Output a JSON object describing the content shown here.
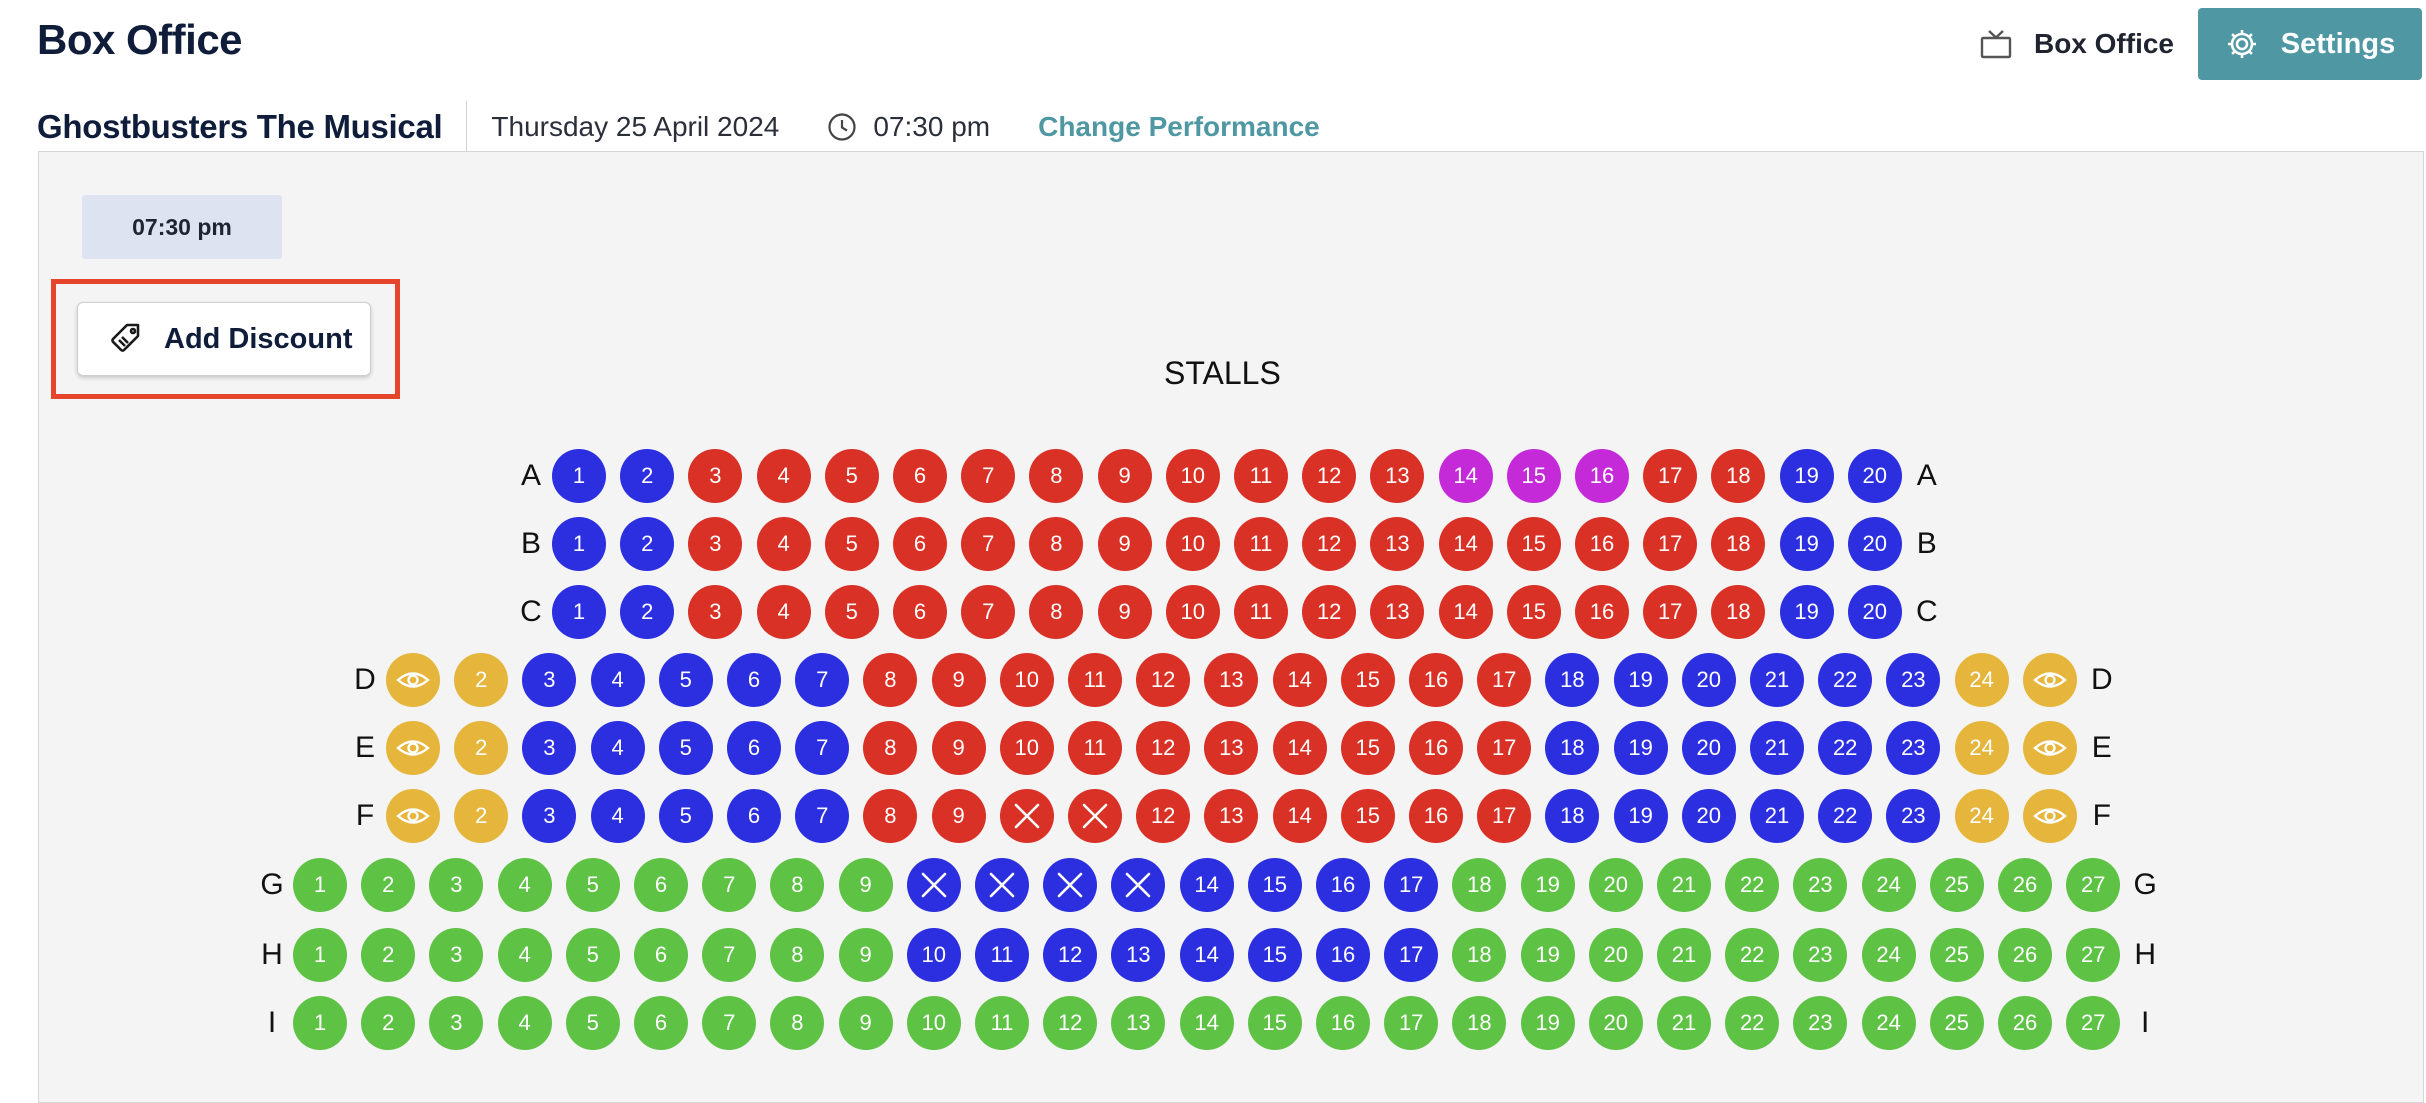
{
  "header": {
    "title": "Box Office",
    "box_office_label": "Box Office",
    "settings_label": "Settings"
  },
  "performance": {
    "title": "Ghostbusters The Musical",
    "date": "Thursday 25 April 2024",
    "time": "07:30 pm",
    "change_label": "Change Performance"
  },
  "time_chip": "07:30 pm",
  "add_discount_label": "Add Discount",
  "section": "STALLS",
  "colors": {
    "blue": "#2b2fe0",
    "red": "#d93125",
    "magenta": "#c52ad8",
    "yellow": "#e5b53c",
    "green": "#5ec245",
    "accent": "#4f98a3"
  },
  "rows": [
    {
      "label": "A",
      "seats": [
        {
          "n": "1",
          "s": "blue"
        },
        {
          "n": "2",
          "s": "blue"
        },
        {
          "n": "3",
          "s": "red"
        },
        {
          "n": "4",
          "s": "red"
        },
        {
          "n": "5",
          "s": "red"
        },
        {
          "n": "6",
          "s": "red"
        },
        {
          "n": "7",
          "s": "red"
        },
        {
          "n": "8",
          "s": "red"
        },
        {
          "n": "9",
          "s": "red"
        },
        {
          "n": "10",
          "s": "red"
        },
        {
          "n": "11",
          "s": "red"
        },
        {
          "n": "12",
          "s": "red"
        },
        {
          "n": "13",
          "s": "red"
        },
        {
          "n": "14",
          "s": "magenta"
        },
        {
          "n": "15",
          "s": "magenta"
        },
        {
          "n": "16",
          "s": "magenta"
        },
        {
          "n": "17",
          "s": "red"
        },
        {
          "n": "18",
          "s": "red"
        },
        {
          "n": "19",
          "s": "blue"
        },
        {
          "n": "20",
          "s": "blue"
        }
      ]
    },
    {
      "label": "B",
      "seats": [
        {
          "n": "1",
          "s": "blue"
        },
        {
          "n": "2",
          "s": "blue"
        },
        {
          "n": "3",
          "s": "red"
        },
        {
          "n": "4",
          "s": "red"
        },
        {
          "n": "5",
          "s": "red"
        },
        {
          "n": "6",
          "s": "red"
        },
        {
          "n": "7",
          "s": "red"
        },
        {
          "n": "8",
          "s": "red"
        },
        {
          "n": "9",
          "s": "red"
        },
        {
          "n": "10",
          "s": "red"
        },
        {
          "n": "11",
          "s": "red"
        },
        {
          "n": "12",
          "s": "red"
        },
        {
          "n": "13",
          "s": "red"
        },
        {
          "n": "14",
          "s": "red"
        },
        {
          "n": "15",
          "s": "red"
        },
        {
          "n": "16",
          "s": "red"
        },
        {
          "n": "17",
          "s": "red"
        },
        {
          "n": "18",
          "s": "red"
        },
        {
          "n": "19",
          "s": "blue"
        },
        {
          "n": "20",
          "s": "blue"
        }
      ]
    },
    {
      "label": "C",
      "seats": [
        {
          "n": "1",
          "s": "blue"
        },
        {
          "n": "2",
          "s": "blue"
        },
        {
          "n": "3",
          "s": "red"
        },
        {
          "n": "4",
          "s": "red"
        },
        {
          "n": "5",
          "s": "red"
        },
        {
          "n": "6",
          "s": "red"
        },
        {
          "n": "7",
          "s": "red"
        },
        {
          "n": "8",
          "s": "red"
        },
        {
          "n": "9",
          "s": "red"
        },
        {
          "n": "10",
          "s": "red"
        },
        {
          "n": "11",
          "s": "red"
        },
        {
          "n": "12",
          "s": "red"
        },
        {
          "n": "13",
          "s": "red"
        },
        {
          "n": "14",
          "s": "red"
        },
        {
          "n": "15",
          "s": "red"
        },
        {
          "n": "16",
          "s": "red"
        },
        {
          "n": "17",
          "s": "red"
        },
        {
          "n": "18",
          "s": "red"
        },
        {
          "n": "19",
          "s": "blue"
        },
        {
          "n": "20",
          "s": "blue"
        }
      ]
    },
    {
      "label": "D",
      "seats": [
        {
          "n": "",
          "s": "yellow",
          "icon": "eye"
        },
        {
          "n": "2",
          "s": "yellow"
        },
        {
          "n": "3",
          "s": "blue"
        },
        {
          "n": "4",
          "s": "blue"
        },
        {
          "n": "5",
          "s": "blue"
        },
        {
          "n": "6",
          "s": "blue"
        },
        {
          "n": "7",
          "s": "blue"
        },
        {
          "n": "8",
          "s": "red"
        },
        {
          "n": "9",
          "s": "red"
        },
        {
          "n": "10",
          "s": "red"
        },
        {
          "n": "11",
          "s": "red"
        },
        {
          "n": "12",
          "s": "red"
        },
        {
          "n": "13",
          "s": "red"
        },
        {
          "n": "14",
          "s": "red"
        },
        {
          "n": "15",
          "s": "red"
        },
        {
          "n": "16",
          "s": "red"
        },
        {
          "n": "17",
          "s": "red"
        },
        {
          "n": "18",
          "s": "blue"
        },
        {
          "n": "19",
          "s": "blue"
        },
        {
          "n": "20",
          "s": "blue"
        },
        {
          "n": "21",
          "s": "blue"
        },
        {
          "n": "22",
          "s": "blue"
        },
        {
          "n": "23",
          "s": "blue"
        },
        {
          "n": "24",
          "s": "yellow"
        },
        {
          "n": "",
          "s": "yellow",
          "icon": "eye"
        }
      ]
    },
    {
      "label": "E",
      "seats": [
        {
          "n": "",
          "s": "yellow",
          "icon": "eye"
        },
        {
          "n": "2",
          "s": "yellow"
        },
        {
          "n": "3",
          "s": "blue"
        },
        {
          "n": "4",
          "s": "blue"
        },
        {
          "n": "5",
          "s": "blue"
        },
        {
          "n": "6",
          "s": "blue"
        },
        {
          "n": "7",
          "s": "blue"
        },
        {
          "n": "8",
          "s": "red"
        },
        {
          "n": "9",
          "s": "red"
        },
        {
          "n": "10",
          "s": "red"
        },
        {
          "n": "11",
          "s": "red"
        },
        {
          "n": "12",
          "s": "red"
        },
        {
          "n": "13",
          "s": "red"
        },
        {
          "n": "14",
          "s": "red"
        },
        {
          "n": "15",
          "s": "red"
        },
        {
          "n": "16",
          "s": "red"
        },
        {
          "n": "17",
          "s": "red"
        },
        {
          "n": "18",
          "s": "blue"
        },
        {
          "n": "19",
          "s": "blue"
        },
        {
          "n": "20",
          "s": "blue"
        },
        {
          "n": "21",
          "s": "blue"
        },
        {
          "n": "22",
          "s": "blue"
        },
        {
          "n": "23",
          "s": "blue"
        },
        {
          "n": "24",
          "s": "yellow"
        },
        {
          "n": "",
          "s": "yellow",
          "icon": "eye"
        }
      ]
    },
    {
      "label": "F",
      "seats": [
        {
          "n": "",
          "s": "yellow",
          "icon": "eye"
        },
        {
          "n": "2",
          "s": "yellow"
        },
        {
          "n": "3",
          "s": "blue"
        },
        {
          "n": "4",
          "s": "blue"
        },
        {
          "n": "5",
          "s": "blue"
        },
        {
          "n": "6",
          "s": "blue"
        },
        {
          "n": "7",
          "s": "blue"
        },
        {
          "n": "8",
          "s": "red"
        },
        {
          "n": "9",
          "s": "red"
        },
        {
          "n": "",
          "s": "red",
          "icon": "x"
        },
        {
          "n": "",
          "s": "red",
          "icon": "x"
        },
        {
          "n": "12",
          "s": "red"
        },
        {
          "n": "13",
          "s": "red"
        },
        {
          "n": "14",
          "s": "red"
        },
        {
          "n": "15",
          "s": "red"
        },
        {
          "n": "16",
          "s": "red"
        },
        {
          "n": "17",
          "s": "red"
        },
        {
          "n": "18",
          "s": "blue"
        },
        {
          "n": "19",
          "s": "blue"
        },
        {
          "n": "20",
          "s": "blue"
        },
        {
          "n": "21",
          "s": "blue"
        },
        {
          "n": "22",
          "s": "blue"
        },
        {
          "n": "23",
          "s": "blue"
        },
        {
          "n": "24",
          "s": "yellow"
        },
        {
          "n": "",
          "s": "yellow",
          "icon": "eye"
        }
      ]
    },
    {
      "label": "G",
      "seats": [
        {
          "n": "1",
          "s": "green"
        },
        {
          "n": "2",
          "s": "green"
        },
        {
          "n": "3",
          "s": "green"
        },
        {
          "n": "4",
          "s": "green"
        },
        {
          "n": "5",
          "s": "green"
        },
        {
          "n": "6",
          "s": "green"
        },
        {
          "n": "7",
          "s": "green"
        },
        {
          "n": "8",
          "s": "green"
        },
        {
          "n": "9",
          "s": "green"
        },
        {
          "n": "",
          "s": "blue",
          "icon": "x"
        },
        {
          "n": "",
          "s": "blue",
          "icon": "x"
        },
        {
          "n": "",
          "s": "blue",
          "icon": "x"
        },
        {
          "n": "",
          "s": "blue",
          "icon": "x"
        },
        {
          "n": "14",
          "s": "blue"
        },
        {
          "n": "15",
          "s": "blue"
        },
        {
          "n": "16",
          "s": "blue"
        },
        {
          "n": "17",
          "s": "blue"
        },
        {
          "n": "18",
          "s": "green"
        },
        {
          "n": "19",
          "s": "green"
        },
        {
          "n": "20",
          "s": "green"
        },
        {
          "n": "21",
          "s": "green"
        },
        {
          "n": "22",
          "s": "green"
        },
        {
          "n": "23",
          "s": "green"
        },
        {
          "n": "24",
          "s": "green"
        },
        {
          "n": "25",
          "s": "green"
        },
        {
          "n": "26",
          "s": "green"
        },
        {
          "n": "27",
          "s": "green"
        }
      ]
    },
    {
      "label": "H",
      "seats": [
        {
          "n": "1",
          "s": "green"
        },
        {
          "n": "2",
          "s": "green"
        },
        {
          "n": "3",
          "s": "green"
        },
        {
          "n": "4",
          "s": "green"
        },
        {
          "n": "5",
          "s": "green"
        },
        {
          "n": "6",
          "s": "green"
        },
        {
          "n": "7",
          "s": "green"
        },
        {
          "n": "8",
          "s": "green"
        },
        {
          "n": "9",
          "s": "green"
        },
        {
          "n": "10",
          "s": "blue"
        },
        {
          "n": "11",
          "s": "blue"
        },
        {
          "n": "12",
          "s": "blue"
        },
        {
          "n": "13",
          "s": "blue"
        },
        {
          "n": "14",
          "s": "blue"
        },
        {
          "n": "15",
          "s": "blue"
        },
        {
          "n": "16",
          "s": "blue"
        },
        {
          "n": "17",
          "s": "blue"
        },
        {
          "n": "18",
          "s": "green"
        },
        {
          "n": "19",
          "s": "green"
        },
        {
          "n": "20",
          "s": "green"
        },
        {
          "n": "21",
          "s": "green"
        },
        {
          "n": "22",
          "s": "green"
        },
        {
          "n": "23",
          "s": "green"
        },
        {
          "n": "24",
          "s": "green"
        },
        {
          "n": "25",
          "s": "green"
        },
        {
          "n": "26",
          "s": "green"
        },
        {
          "n": "27",
          "s": "green"
        }
      ]
    },
    {
      "label": "I",
      "seats": [
        {
          "n": "1",
          "s": "green"
        },
        {
          "n": "2",
          "s": "green"
        },
        {
          "n": "3",
          "s": "green"
        },
        {
          "n": "4",
          "s": "green"
        },
        {
          "n": "5",
          "s": "green"
        },
        {
          "n": "6",
          "s": "green"
        },
        {
          "n": "7",
          "s": "green"
        },
        {
          "n": "8",
          "s": "green"
        },
        {
          "n": "9",
          "s": "green"
        },
        {
          "n": "10",
          "s": "green"
        },
        {
          "n": "11",
          "s": "green"
        },
        {
          "n": "12",
          "s": "green"
        },
        {
          "n": "13",
          "s": "green"
        },
        {
          "n": "14",
          "s": "green"
        },
        {
          "n": "15",
          "s": "green"
        },
        {
          "n": "16",
          "s": "green"
        },
        {
          "n": "17",
          "s": "green"
        },
        {
          "n": "18",
          "s": "green"
        },
        {
          "n": "19",
          "s": "green"
        },
        {
          "n": "20",
          "s": "green"
        },
        {
          "n": "21",
          "s": "green"
        },
        {
          "n": "22",
          "s": "green"
        },
        {
          "n": "23",
          "s": "green"
        },
        {
          "n": "24",
          "s": "green"
        },
        {
          "n": "25",
          "s": "green"
        },
        {
          "n": "26",
          "s": "green"
        },
        {
          "n": "27",
          "s": "green"
        }
      ]
    }
  ]
}
